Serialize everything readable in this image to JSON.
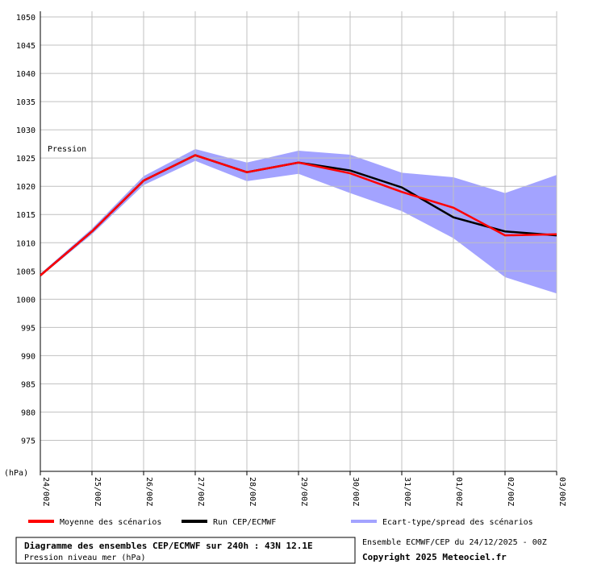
{
  "chart_data": {
    "type": "ensemble",
    "annotation": "Pression",
    "y_unit": "(hPa)",
    "categories": [
      "24/00Z",
      "25/00Z",
      "26/00Z",
      "27/00Z",
      "28/00Z",
      "29/00Z",
      "30/00Z",
      "31/00Z",
      "01/00Z",
      "02/00Z",
      "03/00Z"
    ],
    "series": [
      {
        "name": "Moyenne des scénarios",
        "color": "#ff0000",
        "values": [
          1004.2,
          1012,
          1021,
          1025.5,
          1022.5,
          1024.2,
          1022.3,
          1019,
          1016.2,
          1011.3,
          1011.5
        ]
      },
      {
        "name": "Run CEP/ECMWF",
        "color": "#000000",
        "values": [
          1004.2,
          1012,
          1021,
          1025.5,
          1022.5,
          1024.2,
          1022.8,
          1019.8,
          1014.5,
          1012,
          1011.3
        ]
      }
    ],
    "spread": {
      "name": "Ecart-type/spread des scénarios",
      "color": "#a3a3ff",
      "high": [
        1004.5,
        1012.5,
        1021.8,
        1026.6,
        1024.2,
        1026.3,
        1025.6,
        1022.4,
        1021.6,
        1018.8,
        1022
      ],
      "low": [
        1004,
        1011.5,
        1020.2,
        1024.5,
        1020.9,
        1022.2,
        1018.8,
        1015.6,
        1010.8,
        1003.9,
        1001
      ]
    },
    "ylim": [
      969.5,
      1051
    ],
    "yticks": [
      975,
      980,
      985,
      990,
      995,
      1000,
      1005,
      1010,
      1015,
      1020,
      1025,
      1030,
      1035,
      1040,
      1045,
      1050
    ],
    "grid": true,
    "footer": {
      "title": "Diagramme des ensembles CEP/ECMWF sur 240h : 43N 12.1E",
      "subtitle": "Pression niveau mer (hPa)",
      "run": "Ensemble ECMWF/CEP du 24/12/2025 - 00Z",
      "copyright": "Copyright 2025 Meteociel.fr"
    }
  }
}
